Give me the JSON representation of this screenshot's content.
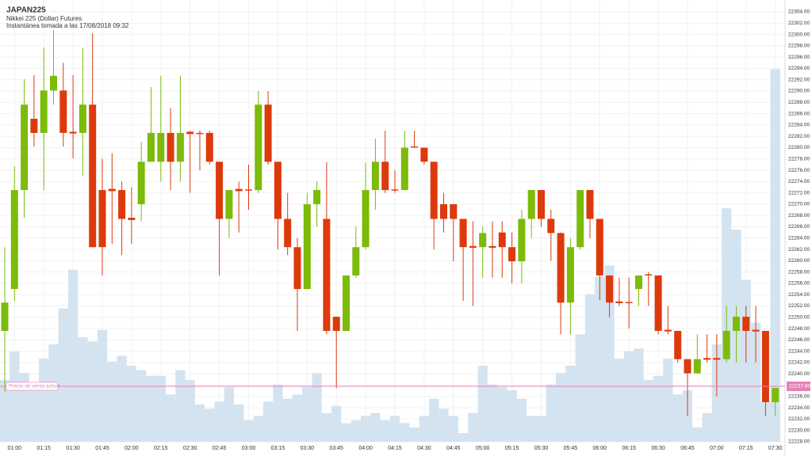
{
  "header": {
    "title": "JAPAN225",
    "subtitle": "Nikkei 225 (Dollar) Futures",
    "snapshot": "Instantánea tomada a las 17/08/2018 09:32"
  },
  "chart_data": {
    "type": "candlestick",
    "up_color": "#7cbb0a",
    "down_color": "#dd3a0c",
    "volume_color": "#d4e3f0",
    "grid": true,
    "categories": [
      null,
      "01:00",
      null,
      null,
      "01:15",
      null,
      null,
      "01:30",
      null,
      null,
      "01:45",
      null,
      null,
      "02:00",
      null,
      null,
      "02:15",
      null,
      null,
      "02:30",
      null,
      null,
      "02:45",
      null,
      null,
      "03:00",
      null,
      null,
      "03:15",
      null,
      null,
      "03:30",
      null,
      null,
      "03:45",
      null,
      null,
      "04:00",
      null,
      null,
      "04:15",
      null,
      null,
      "04:30",
      null,
      null,
      "04:45",
      null,
      null,
      "05:00",
      null,
      null,
      "05:15",
      null,
      null,
      "05:30",
      null,
      null,
      "05:45",
      null,
      null,
      "06:00",
      null,
      null,
      "06:15",
      null,
      null,
      "06:30",
      null,
      null,
      "06:45",
      null,
      null,
      "07:00",
      null,
      null,
      "07:15",
      null,
      null,
      "07:30"
    ],
    "open": [
      22247.6,
      22255,
      22272.5,
      22285.1,
      22282.6,
      22290.1,
      22290.1,
      22282.8,
      22282.6,
      22287.6,
      22272.5,
      22272.7,
      22272.5,
      22267.6,
      22270,
      22277.5,
      22277.5,
      22282.6,
      22277.5,
      22282.8,
      22282.6,
      22282.6,
      22277.5,
      22267.4,
      22272.7,
      22272.6,
      22272.5,
      22287.6,
      22277.5,
      22267.4,
      22262.4,
      22255,
      22270,
      22267.4,
      22250.1,
      22247.6,
      22257.4,
      22262.4,
      22272.5,
      22277.5,
      22272.6,
      22272.5,
      22280.2,
      22280,
      22277.5,
      22270,
      22270,
      22267.4,
      22262.6,
      22262.4,
      22262.6,
      22265,
      22262.4,
      22259.9,
      22267.4,
      22272.5,
      22267.4,
      22264.9,
      22252.6,
      22262.4,
      22272.5,
      22267.4,
      22257.4,
      22252.8,
      22252.7,
      22255,
      22257.6,
      22257.4,
      22247.8,
      22247.6,
      22242.6,
      22240.1,
      22242.8,
      22242.8,
      22242.6,
      22247.6,
      22250.1,
      22247.8,
      22247.6,
      22235
    ],
    "high": [
      22262.4,
      22276.7,
      22292.1,
      22292.8,
      22297.7,
      22300.8,
      22295,
      22292.8,
      22297.7,
      22300.2,
      22278,
      22279,
      22274,
      22273,
      22281,
      22290.7,
      22292.7,
      22287,
      22292.7,
      22283,
      22283,
      22283,
      22277.5,
      22272.5,
      22274,
      22277,
      22290,
      22290,
      22277.5,
      22272,
      22264,
      22272,
      22274,
      22277.4,
      22250.1,
      22257.4,
      22266,
      22277.4,
      22281.6,
      22283,
      22276,
      22283,
      22283,
      22280,
      22277.5,
      22272,
      22270,
      22267.4,
      22267,
      22266,
      22267,
      22267,
      22265,
      22269,
      22272.5,
      22272.5,
      22269,
      22265,
      22264,
      22272.5,
      22272.5,
      22267.4,
      22257.4,
      22257,
      22257,
      22257.4,
      22258,
      22257.4,
      22252,
      22247.6,
      22242.6,
      22247,
      22247,
      22247,
      22252,
      22252,
      22252,
      22252,
      22247.6,
      22237.5
    ],
    "low": [
      22236.8,
      22252.9,
      22267.6,
      22280.2,
      22272.5,
      22287.6,
      22280.2,
      22278.1,
      22275,
      22262.4,
      22257.4,
      22263,
      22261,
      22263,
      22267,
      22277.5,
      22274,
      22272.5,
      22274,
      22272,
      22276,
      22277,
      22257.4,
      22264,
      22265,
      22269,
      22272,
      22277,
      22262,
      22261,
      22247.6,
      22255,
      22266,
      22247,
      22237.5,
      22247.6,
      22257,
      22262,
      22269,
      22272,
      22272,
      22272.5,
      22280,
      22277,
      22262,
      22265,
      22259.9,
      22252.9,
      22252,
      22257,
      22257,
      22257,
      22256,
      22256,
      22264,
      22266,
      22260,
      22247,
      22247,
      22262,
      22264,
      22253,
      22250,
      22252,
      22248,
      22252,
      22252,
      22247,
      22247,
      22242,
      22232.6,
      22240,
      22242,
      22236,
      22242,
      22242,
      22242,
      22242,
      22232.6,
      22232.6
    ],
    "close": [
      22252.6,
      22272.5,
      22287.6,
      22282.6,
      22290.1,
      22292.7,
      22282.6,
      22282.5,
      22287.6,
      22262.4,
      22262.4,
      22272.3,
      22267.4,
      22267.2,
      22277.5,
      22282.6,
      22282.6,
      22277.5,
      22282.6,
      22282.4,
      22282.4,
      22277.5,
      22267.4,
      22272.5,
      22272.3,
      22272.4,
      22287.6,
      22277.5,
      22267.4,
      22262.4,
      22255,
      22270,
      22272.5,
      22247.6,
      22247.6,
      22257.4,
      22262.4,
      22272.5,
      22277.5,
      22272.5,
      22272.4,
      22280,
      22280,
      22277.5,
      22267.4,
      22267.4,
      22267.4,
      22262.4,
      22262.3,
      22264.9,
      22262.3,
      22262.4,
      22259.9,
      22267.4,
      22272.5,
      22267.4,
      22264.9,
      22252.6,
      22262.4,
      22272.5,
      22267.4,
      22257.4,
      22252.6,
      22252.5,
      22252.5,
      22257.4,
      22257.4,
      22247.6,
      22247.5,
      22242.6,
      22240.1,
      22242.6,
      22242.5,
      22242.5,
      22247.6,
      22250.1,
      22247.6,
      22247.5,
      22235,
      22237.5
    ],
    "volume": [
      43,
      63,
      48,
      36,
      58,
      68,
      93,
      120,
      73,
      70,
      78,
      56,
      60,
      53,
      50,
      46,
      46,
      33,
      50,
      43,
      26,
      23,
      28,
      38,
      26,
      15,
      18,
      28,
      40,
      30,
      33,
      38,
      48,
      20,
      25,
      13,
      15,
      18,
      20,
      15,
      18,
      13,
      10,
      18,
      30,
      23,
      18,
      6,
      20,
      53,
      40,
      38,
      36,
      30,
      18,
      18,
      40,
      48,
      53,
      75,
      103,
      115,
      123,
      58,
      63,
      65,
      43,
      46,
      58,
      33,
      36,
      10,
      20,
      68,
      163,
      148,
      113,
      83,
      28,
      260
    ],
    "volume_ylim": [
      0,
      300
    ],
    "ylim": [
      22228,
      22304
    ],
    "yticks": [
      {
        "value": 22228,
        "label": "22228.00"
      },
      {
        "value": 22230,
        "label": "22230.00"
      },
      {
        "value": 22232,
        "label": "22232.00"
      },
      {
        "value": 22234,
        "label": "22234.00"
      },
      {
        "value": 22236,
        "label": "22236.00"
      },
      {
        "value": 22238,
        "label": "22238.00"
      },
      {
        "value": 22240,
        "label": "22240.00"
      },
      {
        "value": 22242,
        "label": "22242.00"
      },
      {
        "value": 22244,
        "label": "22244.00"
      },
      {
        "value": 22246,
        "label": "22246.00"
      },
      {
        "value": 22248,
        "label": "22248.00"
      },
      {
        "value": 22250,
        "label": "22250.00"
      },
      {
        "value": 22252,
        "label": "22252.00"
      },
      {
        "value": 22254,
        "label": "22254.00"
      },
      {
        "value": 22256,
        "label": "22256.00"
      },
      {
        "value": 22258,
        "label": "22258.00"
      },
      {
        "value": 22260,
        "label": "22260.00"
      },
      {
        "value": 22262,
        "label": "22262.00"
      },
      {
        "value": 22264,
        "label": "22264.00"
      },
      {
        "value": 22266,
        "label": "22266.00"
      },
      {
        "value": 22268,
        "label": "22268.00"
      },
      {
        "value": 22270,
        "label": "22270.00"
      },
      {
        "value": 22272,
        "label": "22272.00"
      },
      {
        "value": 22274,
        "label": "22274.00"
      },
      {
        "value": 22276,
        "label": "22276.00"
      },
      {
        "value": 22278,
        "label": "22278.00"
      },
      {
        "value": 22280,
        "label": "22280.00"
      },
      {
        "value": 22282,
        "label": "22282.00"
      },
      {
        "value": 22284,
        "label": "22284.00"
      },
      {
        "value": 22286,
        "label": "22286.00"
      },
      {
        "value": 22288,
        "label": "22288.00"
      },
      {
        "value": 22290,
        "label": "22290.00"
      },
      {
        "value": 22292,
        "label": "22292.00"
      },
      {
        "value": 22294,
        "label": "22294.00"
      },
      {
        "value": 22296,
        "label": "22296.00"
      },
      {
        "value": 22298,
        "label": "22298.00"
      },
      {
        "value": 22300,
        "label": "22300.00"
      },
      {
        "value": 22302,
        "label": "22302.00"
      },
      {
        "value": 22304,
        "label": "22304.00"
      }
    ],
    "current_price": {
      "value": 22237.8,
      "label": "22237.80",
      "text": "Precio de venta actual",
      "color": "#e87fb8"
    }
  }
}
